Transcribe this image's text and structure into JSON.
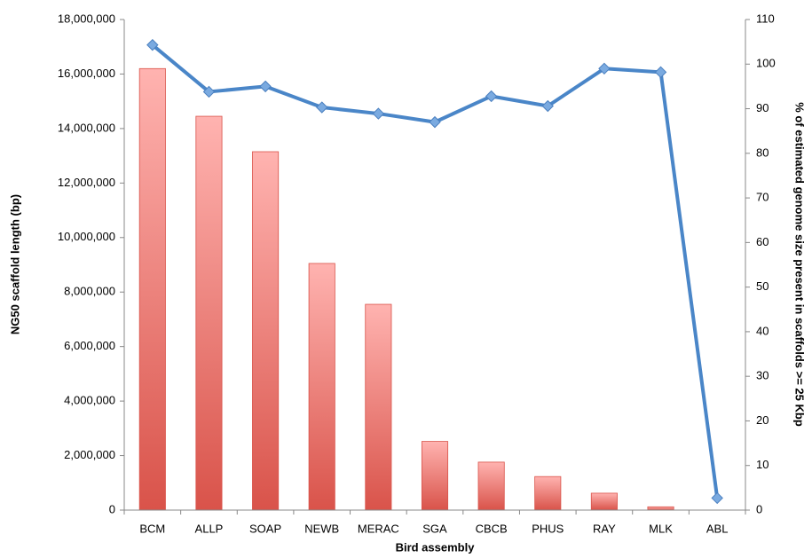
{
  "chart_data": {
    "type": "bar_line",
    "categories": [
      "BCM",
      "ALLP",
      "SOAP",
      "NEWB",
      "MERAC",
      "SGA",
      "CBCB",
      "PHUS",
      "RAY",
      "MLK",
      "ABL"
    ],
    "x_label": "Bird assembly",
    "y_label": "NG50 scaffold length (bp)",
    "y2_label": "% of estimated genome size present in scaffolds >= 25 Kbp",
    "series": [
      {
        "type": "bar",
        "color": "#d9534a",
        "values": [
          16200000,
          14450000,
          13150000,
          9050000,
          7550000,
          2520000,
          1760000,
          1230000,
          620000,
          120000,
          null
        ]
      },
      {
        "type": "line",
        "axis": "y2",
        "color": "#4a86c8",
        "values": [
          104.3,
          93.8,
          95.0,
          90.3,
          88.9,
          87.0,
          92.8,
          90.6,
          99.0,
          98.2,
          2.7
        ]
      }
    ],
    "ylim": [
      0,
      18000000
    ],
    "yticks": [
      0,
      {
        "value": 2000000,
        "label": "2,000,000"
      },
      {
        "value": 4000000,
        "label": "4,000,000"
      },
      {
        "value": 6000000,
        "label": "6,000,000"
      },
      {
        "value": 8000000,
        "label": "8,000,000"
      },
      {
        "value": 10000000,
        "label": "10,000,000"
      },
      {
        "value": 12000000,
        "label": "12,000,000"
      },
      {
        "value": 14000000,
        "label": "14,000,000"
      },
      {
        "value": 16000000,
        "label": "16,000,000"
      },
      {
        "value": 18000000,
        "label": "18,000,000"
      }
    ],
    "y2lim": [
      0,
      110
    ],
    "y2ticks": [
      0,
      10,
      20,
      30,
      40,
      50,
      60,
      70,
      80,
      90,
      100,
      110
    ]
  }
}
